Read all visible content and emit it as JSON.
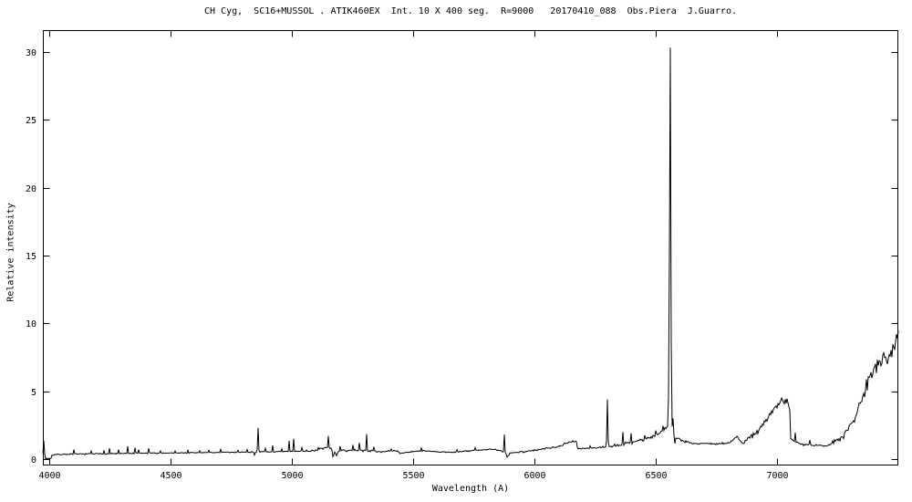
{
  "chart_data": {
    "type": "line",
    "title": "CH Cyg,  SC16+MUSSOL . ATIK460EX  Int. 10 X 400 seg.  R=9000   20170410_088  Obs.Piera  J.Guarro.",
    "xlabel": "Wavelength (A)",
    "ylabel": "Relative intensity",
    "x_ticks": [
      4000,
      4500,
      5000,
      5500,
      6000,
      6500,
      7000
    ],
    "y_ticks": [
      0,
      5,
      10,
      15,
      20,
      25,
      30
    ],
    "xlim": [
      3974,
      7501
    ],
    "ylim": [
      -0.47,
      31.6
    ],
    "grid": false,
    "legend": "none",
    "line_color": "#000000",
    "background_color": "#ffffff",
    "peak_max": {
      "wavelength": 6560,
      "value": 30.3
    },
    "continuum": [
      [
        3974,
        0.05
      ],
      [
        4008,
        0.05
      ],
      [
        4012,
        0.32
      ],
      [
        4050,
        0.35
      ],
      [
        4150,
        0.38
      ],
      [
        4250,
        0.4
      ],
      [
        4350,
        0.42
      ],
      [
        4450,
        0.44
      ],
      [
        4550,
        0.46
      ],
      [
        4650,
        0.48
      ],
      [
        4750,
        0.5
      ],
      [
        4850,
        0.52
      ],
      [
        4950,
        0.54
      ],
      [
        5030,
        0.58
      ],
      [
        5090,
        0.62
      ],
      [
        5140,
        0.85
      ],
      [
        5165,
        0.75
      ],
      [
        5180,
        0.45
      ],
      [
        5200,
        0.62
      ],
      [
        5260,
        0.65
      ],
      [
        5320,
        0.62
      ],
      [
        5380,
        0.55
      ],
      [
        5430,
        0.62
      ],
      [
        5450,
        0.42
      ],
      [
        5480,
        0.52
      ],
      [
        5540,
        0.62
      ],
      [
        5580,
        0.55
      ],
      [
        5640,
        0.5
      ],
      [
        5700,
        0.55
      ],
      [
        5780,
        0.68
      ],
      [
        5830,
        0.72
      ],
      [
        5860,
        0.62
      ],
      [
        5885,
        0.4
      ],
      [
        5910,
        0.48
      ],
      [
        5960,
        0.56
      ],
      [
        6010,
        0.66
      ],
      [
        6060,
        0.8
      ],
      [
        6110,
        1.0
      ],
      [
        6150,
        1.3
      ],
      [
        6172,
        1.35
      ],
      [
        6180,
        0.78
      ],
      [
        6230,
        0.8
      ],
      [
        6280,
        0.88
      ],
      [
        6320,
        0.95
      ],
      [
        6360,
        1.05
      ],
      [
        6400,
        1.25
      ],
      [
        6440,
        1.4
      ],
      [
        6480,
        1.6
      ],
      [
        6520,
        1.95
      ],
      [
        6548,
        2.4
      ],
      [
        6562,
        2.6
      ],
      [
        6580,
        1.6
      ],
      [
        6620,
        1.3
      ],
      [
        6660,
        1.15
      ],
      [
        6700,
        1.15
      ],
      [
        6760,
        1.1
      ],
      [
        6810,
        1.25
      ],
      [
        6835,
        1.7
      ],
      [
        6855,
        1.15
      ],
      [
        6880,
        1.45
      ],
      [
        6910,
        1.9
      ],
      [
        6950,
        2.7
      ],
      [
        6990,
        3.8
      ],
      [
        7020,
        4.4
      ],
      [
        7045,
        4.2
      ],
      [
        7053,
        3.9
      ],
      [
        7057,
        1.55
      ],
      [
        7080,
        1.25
      ],
      [
        7110,
        1.05
      ],
      [
        7160,
        1.0
      ],
      [
        7210,
        1.0
      ],
      [
        7240,
        1.25
      ],
      [
        7280,
        1.9
      ],
      [
        7320,
        3.0
      ],
      [
        7355,
        4.6
      ],
      [
        7385,
        6.2
      ],
      [
        7410,
        7.0
      ],
      [
        7440,
        7.4
      ],
      [
        7465,
        7.8
      ],
      [
        7485,
        8.4
      ],
      [
        7501,
        9.5
      ]
    ],
    "emission_lines": [
      [
        3979,
        1.35
      ],
      [
        4102,
        0.7
      ],
      [
        4174,
        0.6
      ],
      [
        4226,
        0.65
      ],
      [
        4250,
        0.8
      ],
      [
        4287,
        0.7
      ],
      [
        4325,
        0.95
      ],
      [
        4352,
        0.85
      ],
      [
        4370,
        0.7
      ],
      [
        4412,
        0.8
      ],
      [
        4460,
        0.6
      ],
      [
        4520,
        0.6
      ],
      [
        4571,
        0.65
      ],
      [
        4620,
        0.62
      ],
      [
        4660,
        0.65
      ],
      [
        4708,
        0.72
      ],
      [
        4780,
        0.65
      ],
      [
        4815,
        0.7
      ],
      [
        4861,
        2.3
      ],
      [
        4890,
        0.8
      ],
      [
        4920,
        1.0
      ],
      [
        4960,
        0.75
      ],
      [
        4990,
        1.35
      ],
      [
        5007,
        1.5
      ],
      [
        5040,
        0.85
      ],
      [
        5110,
        0.85
      ],
      [
        5152,
        1.7
      ],
      [
        5198,
        0.95
      ],
      [
        5252,
        1.05
      ],
      [
        5280,
        1.2
      ],
      [
        5308,
        1.85
      ],
      [
        5340,
        0.9
      ],
      [
        5410,
        0.75
      ],
      [
        5535,
        0.85
      ],
      [
        5680,
        0.7
      ],
      [
        5755,
        0.85
      ],
      [
        5876,
        1.8
      ],
      [
        6230,
        0.98
      ],
      [
        6300,
        4.4
      ],
      [
        6364,
        2.0
      ],
      [
        6400,
        1.9
      ],
      [
        6455,
        1.75
      ],
      [
        6500,
        2.1
      ],
      [
        6530,
        2.45
      ],
      [
        6553,
        2.9
      ],
      [
        6557,
        15.2
      ],
      [
        6560,
        30.3
      ],
      [
        6564,
        8.6
      ],
      [
        6571,
        3.0
      ],
      [
        7075,
        1.95
      ],
      [
        7135,
        1.4
      ]
    ],
    "absorption_dips": [
      [
        4846,
        0.3
      ],
      [
        5168,
        0.18
      ],
      [
        5185,
        0.25
      ],
      [
        5888,
        0.15
      ],
      [
        5897,
        0.28
      ],
      [
        6579,
        1.15
      ]
    ],
    "noise_segments": [
      [
        3974,
        5050,
        0.05
      ],
      [
        5050,
        5400,
        0.09
      ],
      [
        5400,
        5950,
        0.06
      ],
      [
        5950,
        6180,
        0.09
      ],
      [
        6180,
        6320,
        0.07
      ],
      [
        6320,
        6545,
        0.16
      ],
      [
        6545,
        6580,
        0.1
      ],
      [
        6580,
        6860,
        0.1
      ],
      [
        6860,
        7050,
        0.3
      ],
      [
        7050,
        7230,
        0.08
      ],
      [
        7230,
        7360,
        0.35
      ],
      [
        7360,
        7501,
        0.85
      ]
    ],
    "noise_seed": 7
  }
}
